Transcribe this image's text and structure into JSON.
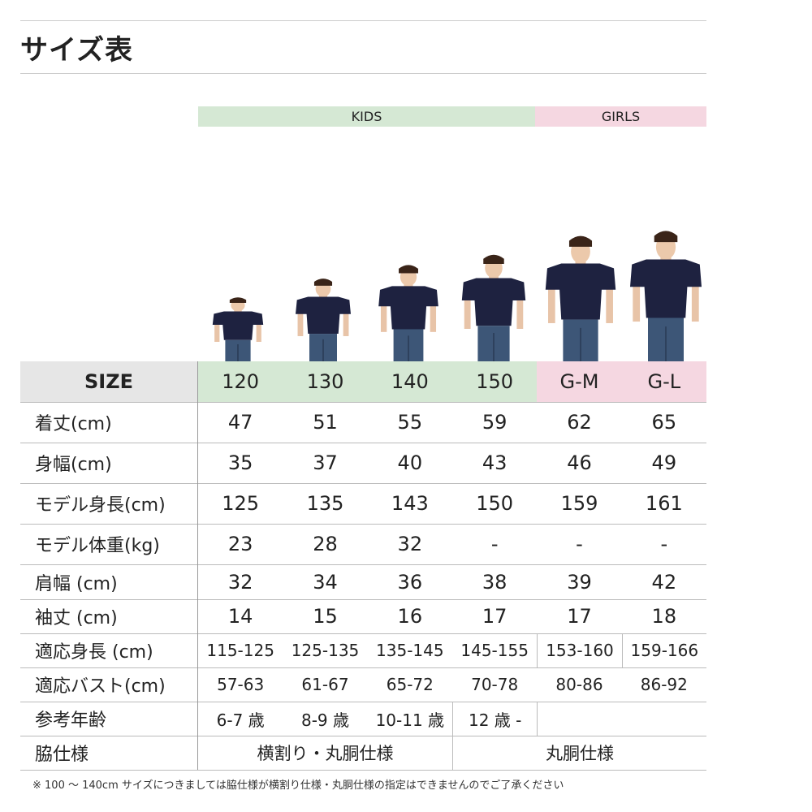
{
  "title": "サイズ表",
  "groups": [
    {
      "label": "KIDS",
      "color": "#d5e8d4"
    },
    {
      "label": "GIRLS",
      "color": "#f5d7e1"
    }
  ],
  "colors": {
    "size_header_bg": "#e6e6e6",
    "shirt": "#1e2240",
    "jeans": "#3d5677"
  },
  "header": {
    "label": "SIZE",
    "sizes": [
      "120",
      "130",
      "140",
      "150",
      "G-M",
      "G-L"
    ]
  },
  "rows": [
    {
      "label": "着丈(cm)",
      "values": [
        "47",
        "51",
        "55",
        "59",
        "62",
        "65"
      ]
    },
    {
      "label": "身幅(cm)",
      "values": [
        "35",
        "37",
        "40",
        "43",
        "46",
        "49"
      ]
    },
    {
      "label": "モデル身長(cm)",
      "values": [
        "125",
        "135",
        "143",
        "150",
        "159",
        "161"
      ]
    },
    {
      "label": "モデル体重(kg)",
      "values": [
        "23",
        "28",
        "32",
        "-",
        "-",
        "-"
      ]
    },
    {
      "label": "肩幅 (cm)",
      "values": [
        "32",
        "34",
        "36",
        "38",
        "39",
        "42"
      ]
    },
    {
      "label": "袖丈 (cm)",
      "values": [
        "14",
        "15",
        "16",
        "17",
        "17",
        "18"
      ]
    },
    {
      "label": "適応身長 (cm)",
      "values": [
        "115-125",
        "125-135",
        "135-145",
        "145-155",
        "153-160",
        "159-166"
      ]
    },
    {
      "label": "適応バスト(cm)",
      "values": [
        "57-63",
        "61-67",
        "65-72",
        "70-78",
        "80-86",
        "86-92"
      ]
    }
  ],
  "age": {
    "label": "参考年齢",
    "values": [
      "6-7 歳",
      "8-9 歳",
      "10-11 歳",
      "12 歳 -"
    ]
  },
  "side": {
    "label": "脇仕様",
    "kids": "横割り・丸胴仕様",
    "girls": "丸胴仕様"
  },
  "note": "※ 100 〜 140cm サイズにつきましては脇仕様が横割り仕様・丸胴仕様の指定はできませんのでご了承ください"
}
